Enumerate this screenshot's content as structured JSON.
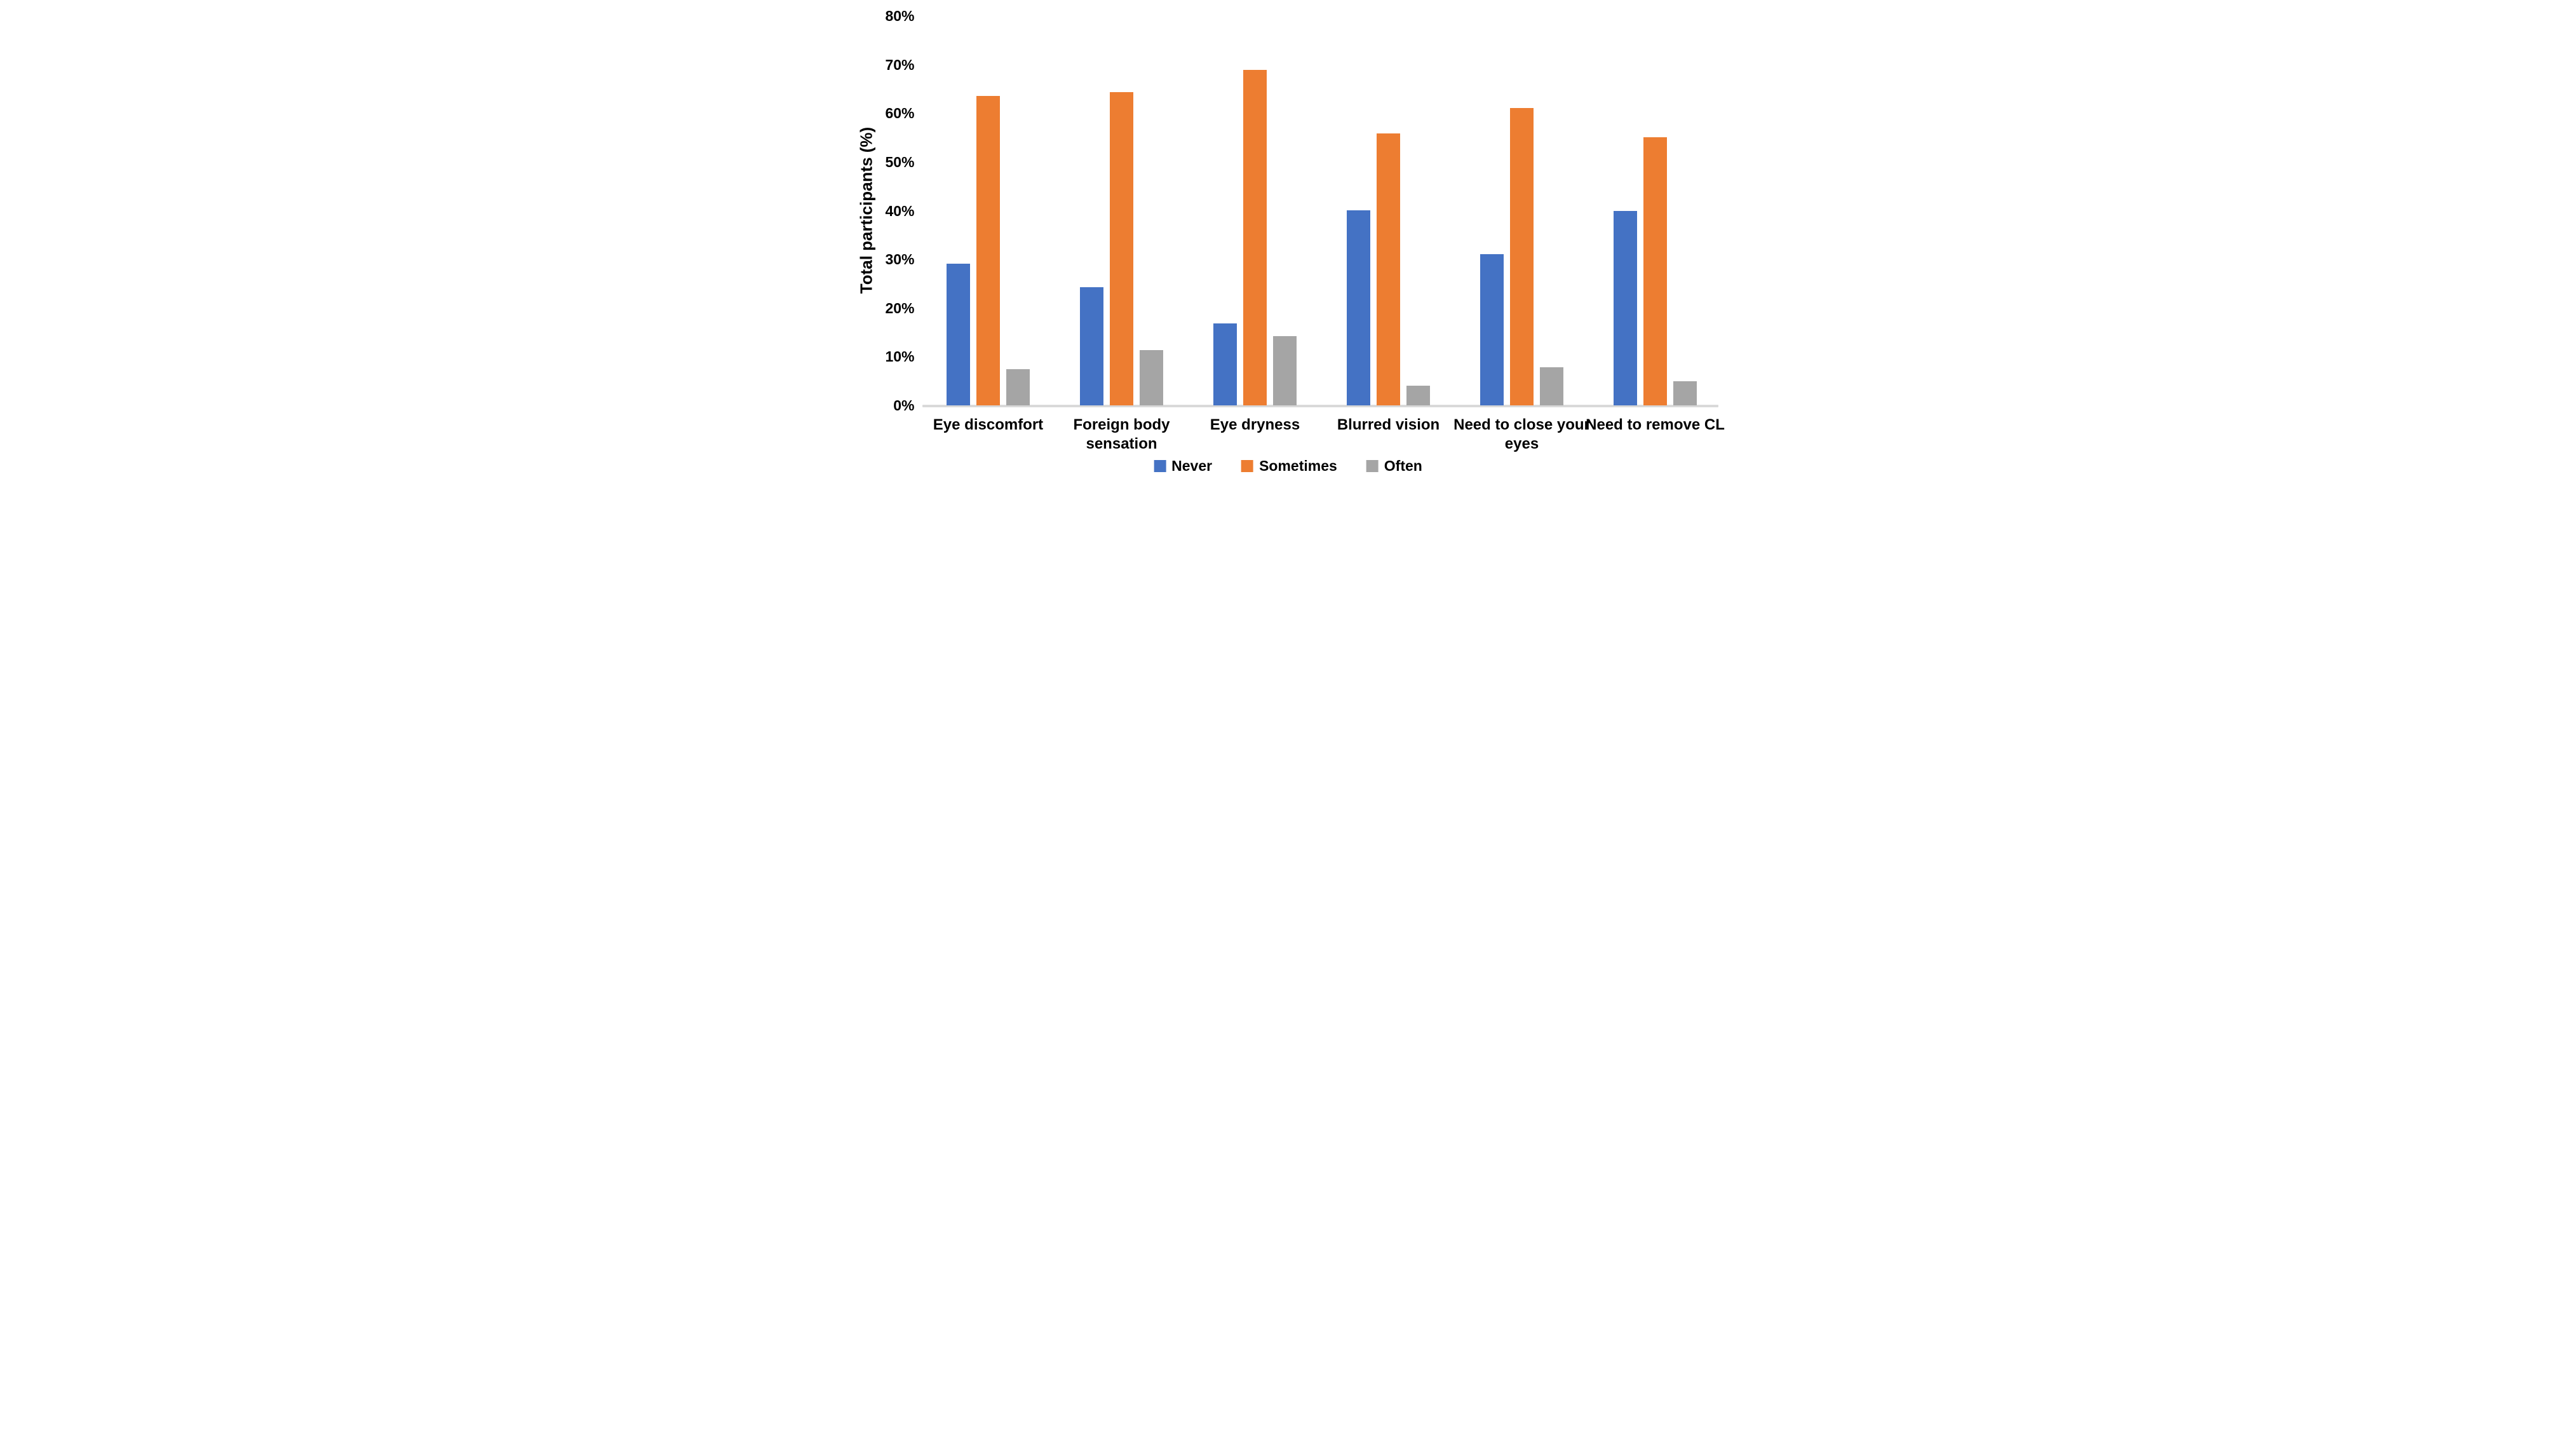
{
  "chart_data": {
    "type": "bar",
    "title": "",
    "xlabel": "",
    "ylabel": "Total participants (%)",
    "ylim": [
      0,
      80
    ],
    "y_ticks": [
      "0%",
      "10%",
      "20%",
      "30%",
      "40%",
      "50%",
      "60%",
      "70%",
      "80%"
    ],
    "grid": false,
    "legend_position": "bottom",
    "axis_line_color": "#D9D9D9",
    "text_color": "#000000",
    "background_color": "#FFFFFF",
    "categories": [
      "Eye discomfort",
      "Foreign body sensation",
      "Eye dryness",
      "Blurred vision",
      "Need to close your eyes",
      "Need to remove CL"
    ],
    "series": [
      {
        "name": "Never",
        "color": "#4472C4",
        "values": [
          29.1,
          24.3,
          16.9,
          40.1,
          31.1,
          39.9
        ]
      },
      {
        "name": "Sometimes",
        "color": "#ED7D31",
        "values": [
          63.5,
          64.4,
          68.9,
          55.9,
          61.1,
          55.1
        ]
      },
      {
        "name": "Often",
        "color": "#A5A5A5",
        "values": [
          7.4,
          11.3,
          14.2,
          4.0,
          7.8,
          5.0
        ]
      }
    ]
  },
  "layout": {
    "baseline_y": 638,
    "plot_top_y": 25,
    "baseline_x_start": 124,
    "baseline_x_end": 1377,
    "group_centers": [
      228,
      438,
      648,
      858,
      1068,
      1278
    ],
    "tick_label_right_x": 112,
    "cat_label_top_y": 654
  }
}
